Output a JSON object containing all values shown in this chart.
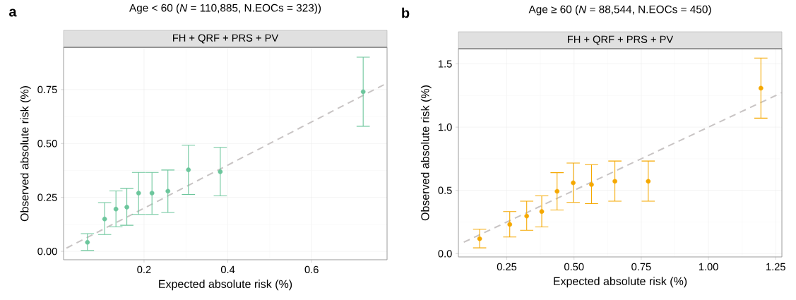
{
  "chart_data": [
    {
      "type": "scatter",
      "title": "Age < 60 (*N* = 110,885, N.EOCs = 323))",
      "subtitle": "FH + QRF + PRS + PV",
      "xlabel": "Expected absolute risk (%)",
      "ylabel": "Observed absolute risk (%)",
      "annotations": [
        "a"
      ],
      "series": [
        {
          "type": "line",
          "x": [
            0.015,
            0.78
          ],
          "values": [
            0.015,
            0.78
          ],
          "color": "#c8c4c4",
          "line_style": "dashed",
          "marker": "none"
        },
        {
          "type": "scatter",
          "marker": "circle",
          "x": [
            0.065,
            0.106,
            0.133,
            0.159,
            0.187,
            0.219,
            0.257,
            0.306,
            0.382,
            0.723
          ],
          "values": [
            0.042,
            0.15,
            0.196,
            0.205,
            0.27,
            0.27,
            0.279,
            0.378,
            0.369,
            0.74
          ],
          "errors": [
            [
              0.004,
              0.082
            ],
            [
              0.078,
              0.226
            ],
            [
              0.114,
              0.28
            ],
            [
              0.121,
              0.292
            ],
            [
              0.171,
              0.366
            ],
            [
              0.171,
              0.366
            ],
            [
              0.18,
              0.377
            ],
            [
              0.264,
              0.492
            ],
            [
              0.257,
              0.482
            ],
            [
              0.58,
              0.9
            ]
          ],
          "color": "#6cc69c"
        }
      ],
      "xlim": [
        0.008,
        0.78
      ],
      "ylim": [
        -0.039,
        0.946
      ],
      "xticks": [
        0.2,
        0.4,
        0.6
      ],
      "yticks": [
        {
          "value": 0,
          "label": "0.00"
        },
        {
          "value": 0.25,
          "label": "0.25"
        },
        {
          "value": 0.5,
          "label": "0.50"
        },
        {
          "value": 0.75,
          "label": "0.75"
        }
      ],
      "grid": true
    },
    {
      "type": "scatter",
      "title": "Age ≥ 60 (*N* = 88,544, N.EOCs = 450)",
      "subtitle": "FH + QRF + PRS + PV",
      "xlabel": "Expected absolute risk (%)",
      "ylabel": "Observed absolute risk (%)",
      "annotations": [
        "b"
      ],
      "series": [
        {
          "type": "line",
          "x": [
            0.09,
            1.273
          ],
          "values": [
            0.09,
            1.273
          ],
          "color": "#c8c4c4",
          "line_style": "dashed",
          "marker": "none"
        },
        {
          "type": "scatter",
          "marker": "circle",
          "x": [
            0.149,
            0.261,
            0.324,
            0.38,
            0.437,
            0.497,
            0.565,
            0.652,
            0.776,
            1.195
          ],
          "values": [
            0.118,
            0.231,
            0.297,
            0.333,
            0.493,
            0.56,
            0.546,
            0.572,
            0.572,
            1.308
          ],
          "errors": [
            [
              0.046,
              0.193
            ],
            [
              0.132,
              0.333
            ],
            [
              0.185,
              0.415
            ],
            [
              0.211,
              0.457
            ],
            [
              0.345,
              0.64
            ],
            [
              0.405,
              0.716
            ],
            [
              0.395,
              0.704
            ],
            [
              0.415,
              0.732
            ],
            [
              0.415,
              0.732
            ],
            [
              1.071,
              1.546
            ]
          ],
          "color": "#f5a800"
        }
      ],
      "xlim": [
        0.07,
        1.273
      ],
      "ylim": [
        -0.026,
        1.62
      ],
      "xticks": [
        {
          "value": 0.25,
          "label": "0.25"
        },
        {
          "value": 0.5,
          "label": "0.50"
        },
        {
          "value": 0.75,
          "label": "0.75"
        },
        {
          "value": 1,
          "label": "1.00"
        },
        {
          "value": 1.25,
          "label": "1.25"
        }
      ],
      "yticks": [
        {
          "value": 0,
          "label": "0.0"
        },
        {
          "value": 0.5,
          "label": "0.5"
        },
        {
          "value": 1,
          "label": "1.0"
        },
        {
          "value": 1.5,
          "label": "1.5"
        }
      ],
      "grid": true
    }
  ]
}
